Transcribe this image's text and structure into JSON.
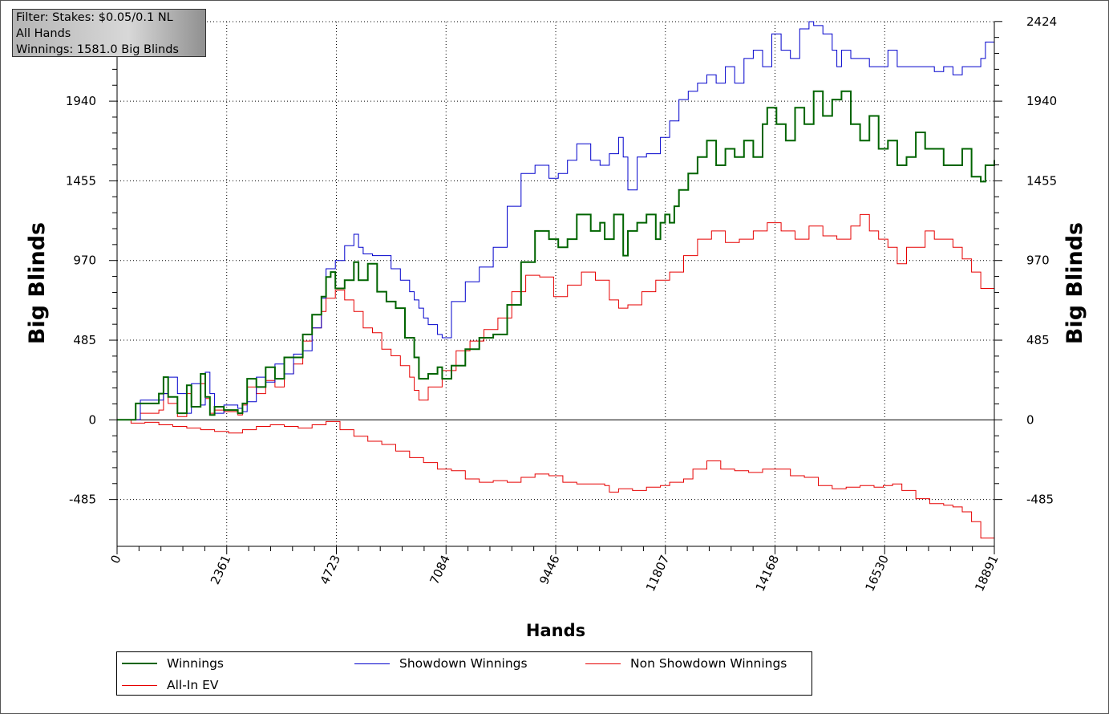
{
  "filter_box": {
    "line1": "Filter: Stakes: $0.05/0.1 NL",
    "line2": "All Hands",
    "line3": "Winnings: 1581.0 Big Blinds"
  },
  "legend": {
    "items": [
      {
        "label": "Winnings",
        "color": "#006400"
      },
      {
        "label": "Showdown Winnings",
        "color": "#0000cc"
      },
      {
        "label": "Non Showdown Winnings",
        "color": "#e60000"
      },
      {
        "label": "All-In EV",
        "color": "#e60000"
      }
    ]
  },
  "chart_data": {
    "type": "line",
    "title": "",
    "xlabel": "Hands",
    "ylabel": "Big Blinds",
    "ylabel_right": "Big Blinds",
    "xlim": [
      0,
      18891
    ],
    "ylim": [
      -770,
      2424
    ],
    "x_ticks": [
      "0",
      "2361",
      "4723",
      "7084",
      "9446",
      "11807",
      "14168",
      "16530",
      "18891"
    ],
    "y_ticks": [
      "-485",
      "0",
      "485",
      "970",
      "1455",
      "1940",
      "2424"
    ],
    "y_ticks_right": [
      "-485",
      "0",
      "485",
      "970",
      "1455",
      "1940",
      "2424"
    ],
    "grid": true,
    "legend_position": "bottom",
    "series": [
      {
        "name": "Winnings",
        "color": "#006400",
        "width": 2,
        "x": [
          0,
          400,
          900,
          1000,
          1100,
          1300,
          1500,
          1600,
          1800,
          1900,
          2000,
          2100,
          2300,
          2600,
          2700,
          2800,
          3000,
          3200,
          3400,
          3600,
          3800,
          4000,
          4200,
          4400,
          4500,
          4600,
          4700,
          4900,
          5100,
          5200,
          5400,
          5600,
          5800,
          6000,
          6200,
          6400,
          6500,
          6700,
          6900,
          7000,
          7200,
          7500,
          7800,
          8100,
          8400,
          8700,
          9000,
          9300,
          9500,
          9700,
          9900,
          10200,
          10400,
          10500,
          10700,
          10900,
          11000,
          11200,
          11400,
          11600,
          11700,
          11800,
          11900,
          12000,
          12100,
          12300,
          12500,
          12700,
          12900,
          13100,
          13300,
          13500,
          13700,
          13900,
          14000,
          14200,
          14400,
          14600,
          14800,
          15000,
          15200,
          15400,
          15600,
          15800,
          16000,
          16200,
          16400,
          16600,
          16800,
          17000,
          17200,
          17400,
          17600,
          17800,
          18000,
          18200,
          18400,
          18600,
          18700,
          18891
        ],
        "y": [
          0,
          100,
          160,
          260,
          140,
          40,
          210,
          80,
          280,
          140,
          30,
          80,
          60,
          40,
          100,
          250,
          200,
          320,
          250,
          380,
          380,
          520,
          640,
          750,
          870,
          900,
          800,
          850,
          960,
          850,
          950,
          780,
          720,
          680,
          500,
          380,
          250,
          280,
          320,
          250,
          330,
          430,
          500,
          520,
          700,
          960,
          1150,
          1100,
          1050,
          1100,
          1250,
          1150,
          1200,
          1100,
          1250,
          1000,
          1150,
          1200,
          1250,
          1100,
          1200,
          1250,
          1200,
          1300,
          1400,
          1500,
          1600,
          1700,
          1550,
          1650,
          1600,
          1700,
          1600,
          1800,
          1900,
          1800,
          1700,
          1900,
          1800,
          2000,
          1850,
          1950,
          2000,
          1800,
          1700,
          1850,
          1650,
          1700,
          1550,
          1600,
          1750,
          1650,
          1650,
          1550,
          1550,
          1650,
          1480,
          1450,
          1550,
          1581
        ]
      },
      {
        "name": "Showdown Winnings",
        "color": "#0000cc",
        "width": 1,
        "x": [
          0,
          500,
          1000,
          1100,
          1300,
          1500,
          1600,
          1800,
          1900,
          2000,
          2100,
          2300,
          2600,
          2700,
          2800,
          3000,
          3200,
          3400,
          3600,
          3800,
          4000,
          4200,
          4400,
          4500,
          4700,
          4900,
          5100,
          5200,
          5300,
          5500,
          5700,
          5900,
          6100,
          6300,
          6400,
          6500,
          6600,
          6700,
          6900,
          7000,
          7200,
          7500,
          7800,
          8100,
          8400,
          8700,
          9000,
          9300,
          9500,
          9700,
          9900,
          10200,
          10400,
          10600,
          10800,
          10900,
          11000,
          11200,
          11400,
          11600,
          11700,
          11900,
          12100,
          12300,
          12500,
          12700,
          12900,
          13100,
          13300,
          13500,
          13700,
          13900,
          14100,
          14300,
          14500,
          14700,
          14900,
          15000,
          15200,
          15400,
          15500,
          15600,
          15800,
          16000,
          16200,
          16400,
          16600,
          16800,
          17000,
          17200,
          17400,
          17600,
          17800,
          18000,
          18200,
          18400,
          18600,
          18700,
          18891
        ],
        "y": [
          0,
          120,
          160,
          260,
          160,
          40,
          220,
          90,
          290,
          160,
          40,
          90,
          70,
          50,
          110,
          260,
          230,
          340,
          280,
          400,
          420,
          560,
          740,
          920,
          970,
          1060,
          1130,
          1050,
          1010,
          1000,
          1000,
          920,
          850,
          780,
          730,
          680,
          620,
          580,
          520,
          500,
          720,
          840,
          930,
          1050,
          1300,
          1500,
          1550,
          1470,
          1500,
          1580,
          1680,
          1580,
          1550,
          1620,
          1720,
          1600,
          1400,
          1600,
          1620,
          1620,
          1720,
          1820,
          1950,
          2000,
          2050,
          2100,
          2050,
          2150,
          2050,
          2200,
          2250,
          2150,
          2350,
          2250,
          2200,
          2380,
          2424,
          2400,
          2350,
          2250,
          2150,
          2250,
          2200,
          2200,
          2150,
          2150,
          2250,
          2150,
          2150,
          2150,
          2150,
          2120,
          2150,
          2100,
          2150,
          2150,
          2200,
          2300,
          2380
        ]
      },
      {
        "name": "Non Showdown Winnings",
        "color": "#e60000",
        "width": 1,
        "x": [
          0,
          300,
          600,
          900,
          1200,
          1500,
          1800,
          2100,
          2400,
          2700,
          3000,
          3300,
          3600,
          3900,
          4200,
          4500,
          4800,
          5100,
          5400,
          5700,
          6000,
          6300,
          6600,
          6900,
          7200,
          7500,
          7800,
          8100,
          8400,
          8700,
          9000,
          9300,
          9600,
          9900,
          10200,
          10500,
          10600,
          10800,
          11100,
          11400,
          11700,
          11900,
          12200,
          12400,
          12700,
          13000,
          13300,
          13600,
          13900,
          14200,
          14500,
          14800,
          15100,
          15400,
          15700,
          16000,
          16300,
          16500,
          16700,
          16900,
          17200,
          17500,
          17800,
          18000,
          18200,
          18400,
          18600,
          18891
        ],
        "y": [
          0,
          -20,
          -15,
          -30,
          -40,
          -50,
          -60,
          -70,
          -80,
          -60,
          -40,
          -30,
          -40,
          -50,
          -30,
          -10,
          -60,
          -100,
          -130,
          -150,
          -190,
          -230,
          -260,
          -300,
          -310,
          -360,
          -380,
          -370,
          -380,
          -350,
          -330,
          -340,
          -380,
          -390,
          -390,
          -400,
          -440,
          -420,
          -430,
          -410,
          -400,
          -380,
          -360,
          -300,
          -250,
          -300,
          -310,
          -320,
          -300,
          -300,
          -340,
          -350,
          -400,
          -420,
          -410,
          -400,
          -410,
          -400,
          -390,
          -430,
          -480,
          -510,
          -520,
          -530,
          -560,
          -620,
          -720,
          -720
        ]
      },
      {
        "name": "All-In EV",
        "color": "#e60000",
        "width": 1,
        "x": [
          0,
          500,
          900,
          1000,
          1100,
          1300,
          1500,
          1600,
          1800,
          1900,
          2000,
          2100,
          2300,
          2600,
          2700,
          2800,
          3000,
          3200,
          3400,
          3600,
          3800,
          4000,
          4200,
          4400,
          4500,
          4700,
          4900,
          5100,
          5300,
          5500,
          5700,
          5900,
          6100,
          6300,
          6400,
          6500,
          6700,
          7000,
          7300,
          7600,
          7900,
          8200,
          8500,
          8800,
          9100,
          9400,
          9700,
          10000,
          10300,
          10600,
          10800,
          11000,
          11300,
          11600,
          11900,
          12200,
          12500,
          12800,
          13100,
          13400,
          13700,
          14000,
          14300,
          14600,
          14900,
          15200,
          15500,
          15800,
          16000,
          16200,
          16400,
          16600,
          16800,
          17000,
          17200,
          17400,
          17600,
          17800,
          18000,
          18200,
          18400,
          18600,
          18891
        ],
        "y": [
          0,
          40,
          60,
          160,
          100,
          20,
          160,
          80,
          220,
          130,
          40,
          60,
          50,
          30,
          90,
          200,
          160,
          240,
          200,
          280,
          340,
          480,
          560,
          660,
          740,
          790,
          730,
          660,
          560,
          530,
          430,
          390,
          330,
          260,
          180,
          120,
          200,
          300,
          420,
          480,
          550,
          620,
          780,
          880,
          870,
          750,
          820,
          900,
          850,
          730,
          680,
          700,
          780,
          850,
          900,
          1000,
          1100,
          1150,
          1080,
          1100,
          1150,
          1200,
          1150,
          1100,
          1180,
          1120,
          1100,
          1180,
          1250,
          1150,
          1100,
          1050,
          950,
          1050,
          1050,
          1150,
          1100,
          1100,
          1050,
          980,
          900,
          800,
          850
        ]
      }
    ]
  }
}
